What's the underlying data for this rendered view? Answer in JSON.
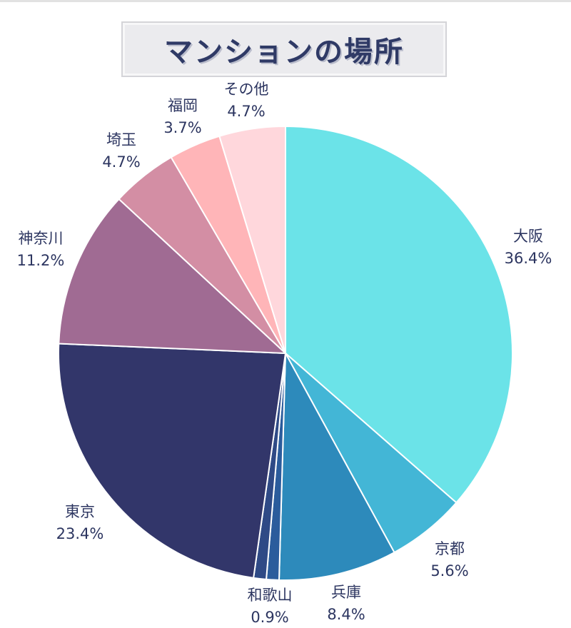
{
  "chart_data": {
    "type": "pie",
    "title": "マンションの場所",
    "slices": [
      {
        "label": "大阪",
        "value": 36.4,
        "display": "36.4%",
        "color": "#6be3e8"
      },
      {
        "label": "京都",
        "value": 5.6,
        "display": "5.6%",
        "color": "#43b6d6"
      },
      {
        "label": "兵庫",
        "value": 8.4,
        "display": "8.4%",
        "color": "#2d8abb"
      },
      {
        "label": "",
        "value": 0.9,
        "display": "",
        "color": "#2b5c9c"
      },
      {
        "label": "和歌山",
        "value": 0.9,
        "display": "0.9%",
        "color": "#2f4a86"
      },
      {
        "label": "東京",
        "value": 23.4,
        "display": "23.4%",
        "color": "#32366a"
      },
      {
        "label": "神奈川",
        "value": 11.2,
        "display": "11.2%",
        "color": "#a06b93"
      },
      {
        "label": "埼玉",
        "value": 4.7,
        "display": "4.7%",
        "color": "#d38ea4"
      },
      {
        "label": "福岡",
        "value": 3.7,
        "display": "3.7%",
        "color": "#ffb5b8"
      },
      {
        "label": "その他",
        "value": 4.7,
        "display": "4.7%",
        "color": "#ffd7dc"
      }
    ]
  }
}
